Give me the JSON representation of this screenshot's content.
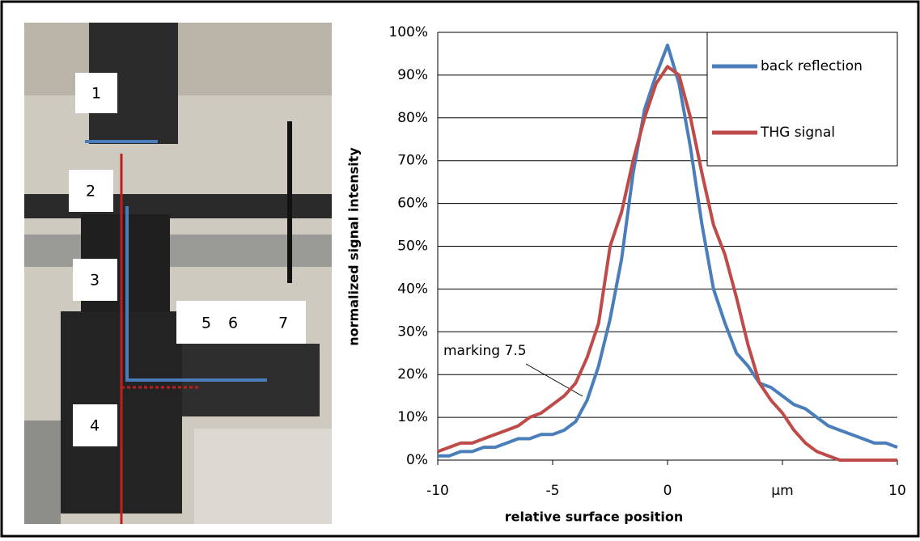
{
  "photo_labels": [
    "1",
    "2",
    "3",
    "4",
    "5",
    "6",
    "7"
  ],
  "chart_data": {
    "type": "line",
    "x_label": "relative surface position",
    "y_label": "normalized signal intensity",
    "annotation": "marking 7.5",
    "x": [
      -10,
      -9.5,
      -9,
      -8.5,
      -8,
      -7.5,
      -7,
      -6.5,
      -6,
      -5.5,
      -5,
      -4.5,
      -4,
      -3.5,
      -3,
      -2.5,
      -2,
      -1.5,
      -1,
      -0.5,
      0,
      0.5,
      1,
      1.5,
      2,
      2.5,
      3,
      3.5,
      4,
      4.5,
      5,
      5.5,
      6,
      6.5,
      7,
      7.5,
      8,
      8.5,
      9,
      9.5,
      10
    ],
    "series": [
      {
        "name": "back reflection",
        "color": "#4a7ebb",
        "values": [
          1,
          1,
          2,
          2,
          3,
          3,
          4,
          5,
          5,
          6,
          6,
          7,
          9,
          14,
          22,
          33,
          47,
          67,
          82,
          90,
          97,
          88,
          73,
          55,
          40,
          32,
          25,
          22,
          18,
          17,
          15,
          13,
          12,
          10,
          8,
          7,
          6,
          5,
          4,
          4,
          3
        ]
      },
      {
        "name": "THG signal",
        "color": "#be4b48",
        "values": [
          2,
          3,
          4,
          4,
          5,
          6,
          7,
          8,
          10,
          11,
          13,
          15,
          18,
          24,
          32,
          50,
          58,
          70,
          80,
          88,
          92,
          90,
          80,
          67,
          55,
          48,
          38,
          27,
          18,
          14,
          11,
          7,
          4,
          2,
          1,
          0,
          0,
          0,
          0,
          0,
          0
        ]
      }
    ],
    "xlim": [
      -10,
      10
    ],
    "xticks": [
      -10,
      -5,
      0,
      {
        "value": 5,
        "label": "µm"
      },
      10
    ],
    "ylim": [
      0,
      100
    ],
    "yticks": [
      {
        "value": 0,
        "label": "0%"
      },
      {
        "value": 10,
        "label": "10%"
      },
      {
        "value": 20,
        "label": "20%"
      },
      {
        "value": 30,
        "label": "30%"
      },
      {
        "value": 40,
        "label": "40%"
      },
      {
        "value": 50,
        "label": "50%"
      },
      {
        "value": 60,
        "label": "60%"
      },
      {
        "value": 70,
        "label": "70%"
      },
      {
        "value": 80,
        "label": "80%"
      },
      {
        "value": 90,
        "label": "90%"
      },
      {
        "value": 100,
        "label": "100%"
      }
    ],
    "grid": true
  }
}
